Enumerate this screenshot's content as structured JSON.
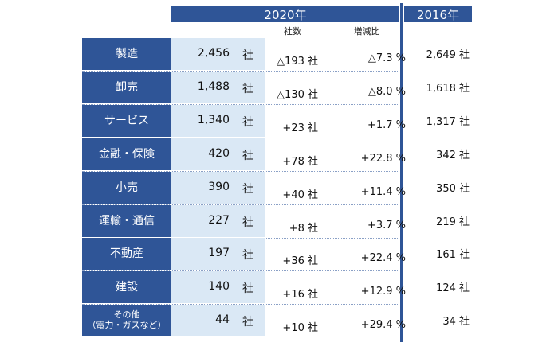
{
  "header": {
    "col2020": "2020年",
    "col2016": "2016年",
    "sub_count": "社数",
    "sub_change": "増減比"
  },
  "unit": "社",
  "rows": [
    {
      "label": "製造",
      "v2020": "2,456",
      "diff_count": "△193 社",
      "diff_rate": "△7.3 %",
      "v2016": "2,649 社"
    },
    {
      "label": "卸売",
      "v2020": "1,488",
      "diff_count": "△130 社",
      "diff_rate": "△8.0 %",
      "v2016": "1,618 社"
    },
    {
      "label": "サービス",
      "v2020": "1,340",
      "diff_count": "+23 社",
      "diff_rate": "+1.7 %",
      "v2016": "1,317 社"
    },
    {
      "label": "金融・保険",
      "v2020": "420",
      "diff_count": "+78 社",
      "diff_rate": "+22.8 %",
      "v2016": "342 社"
    },
    {
      "label": "小売",
      "v2020": "390",
      "diff_count": "+40 社",
      "diff_rate": "+11.4 %",
      "v2016": "350 社"
    },
    {
      "label": "運輸・通信",
      "v2020": "227",
      "diff_count": "+8 社",
      "diff_rate": "+3.7 %",
      "v2016": "219 社"
    },
    {
      "label": "不動産",
      "v2020": "197",
      "diff_count": "+36 社",
      "diff_rate": "+22.4 %",
      "v2016": "161 社"
    },
    {
      "label": "建設",
      "v2020": "140",
      "diff_count": "+16 社",
      "diff_rate": "+12.9 %",
      "v2016": "124 社"
    },
    {
      "label": "その他\n（電力・ガスなど）",
      "v2020": "44",
      "diff_count": "+10 社",
      "diff_rate": "+29.4 %",
      "v2016": "34 社"
    }
  ],
  "colors": {
    "header_blue": "#2f5597",
    "value_bg": "#dae8f5"
  }
}
